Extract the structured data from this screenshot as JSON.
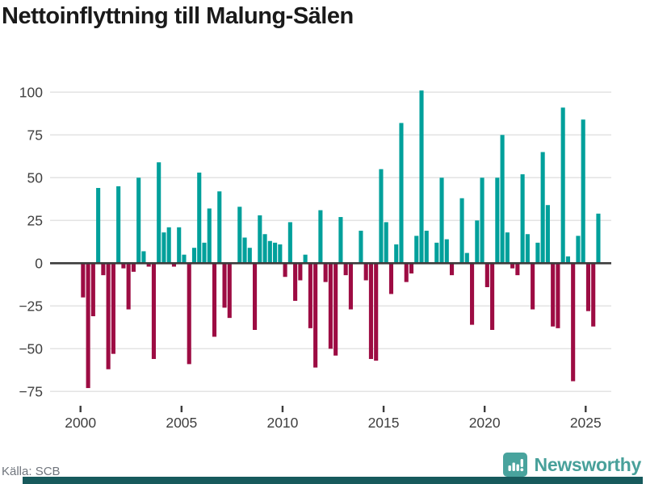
{
  "title": "Nettoinflyttning till Malung-Sälen",
  "source": "Källa: SCB",
  "brand": {
    "name": "Newsworthy",
    "logo_icon": "bar-chart-speech-bubble"
  },
  "colors": {
    "positive_bar": "#00a09b",
    "negative_bar": "#9d0c43",
    "grid": "#e3e3e3",
    "zero_line": "#3c3c3c",
    "axis_text": "#3f3f3f",
    "title_text": "#1a1a1a",
    "source_text": "#70757d",
    "brand_teal": "#48a39d",
    "footer_strip": "#175a5c"
  },
  "chart_data": {
    "type": "bar",
    "title": "Nettoinflyttning till Malung-Sälen",
    "xlabel": "",
    "ylabel": "",
    "x_start_year": 2000,
    "period": "quarterly",
    "values": [
      -20,
      -73,
      -31,
      44,
      -7,
      -62,
      -53,
      45,
      -3,
      -27,
      -5,
      50,
      7,
      -2,
      -56,
      59,
      18,
      21,
      -2,
      21,
      5,
      -59,
      9,
      53,
      12,
      32,
      -43,
      42,
      -26,
      -32,
      0,
      33,
      15,
      9,
      -39,
      28,
      17,
      13,
      12,
      11,
      -8,
      24,
      -22,
      -10,
      5,
      -38,
      -61,
      31,
      -11,
      -50,
      -54,
      27,
      -7,
      -27,
      0,
      19,
      -10,
      -56,
      -57,
      55,
      24,
      -18,
      11,
      82,
      -11,
      -6,
      16,
      101,
      19,
      0,
      12,
      50,
      14,
      -7,
      0,
      38,
      6,
      -36,
      25,
      50,
      -14,
      -39,
      50,
      75,
      18,
      -3,
      -7,
      52,
      17,
      -27,
      12,
      65,
      34,
      -37,
      -38,
      91,
      4,
      -69,
      16,
      84,
      -28,
      -37,
      29
    ],
    "yticks": [
      100,
      75,
      50,
      25,
      0,
      -25,
      -50,
      -75
    ],
    "xticks": [
      2000,
      2005,
      2010,
      2015,
      2020,
      2025
    ],
    "ylim": [
      -80,
      107
    ],
    "grid": true,
    "legend": "none"
  }
}
